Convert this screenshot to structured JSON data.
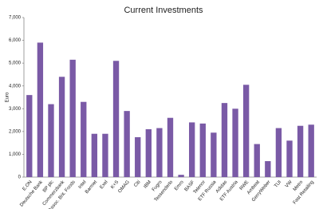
{
  "chart_data": {
    "type": "bar",
    "title": "Current Investments",
    "y_label": "Euro",
    "categories": [
      "E.ON",
      "Deutsche Bank",
      "BP plc",
      "Commerzbank",
      "Assoc. Brit. Foods",
      "Intel",
      "Barmet",
      "Exel",
      "K+S",
      "OMAG",
      "Citi",
      "IBM",
      "Fugro",
      "Tessenderlo",
      "Emro",
      "BASF",
      "Telenor",
      "ETF Russia",
      "Adidas",
      "ETF Austria",
      "RWE",
      "Ambeat",
      "GerryWeber",
      "TUI",
      "VW",
      "Metro",
      "Fast Retailing"
    ],
    "values": [
      3600,
      5900,
      3200,
      4400,
      5150,
      3300,
      1900,
      1900,
      5100,
      2900,
      1750,
      2100,
      2150,
      2600,
      100,
      2400,
      2350,
      1950,
      3250,
      3000,
      4050,
      1450,
      700,
      2150,
      1600,
      2250,
      2300
    ],
    "color": "#7a5aa6",
    "ylim": [
      0,
      7000
    ],
    "yticks": [
      0,
      {
        "value": 1000,
        "label": "1,000"
      },
      {
        "value": 2000,
        "label": "2,000"
      },
      {
        "value": 3000,
        "label": "3,000"
      },
      {
        "value": 4000,
        "label": "4,000"
      },
      {
        "value": 5000,
        "label": "5,000"
      },
      {
        "value": 6000,
        "label": "6,000"
      },
      {
        "value": 7000,
        "label": "7,000"
      }
    ],
    "grid": false
  }
}
